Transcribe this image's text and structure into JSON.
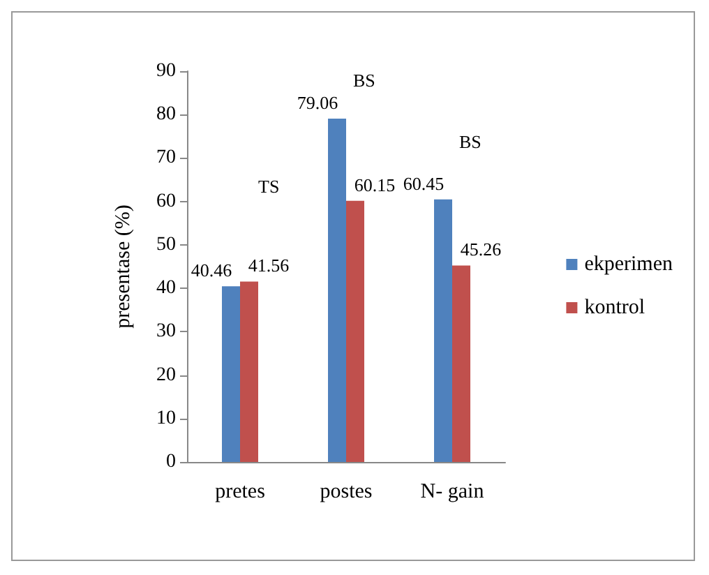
{
  "chart_data": {
    "type": "bar",
    "ylabel": "presentase (%)",
    "categories": [
      "pretes",
      "postes",
      "N- gain"
    ],
    "series": [
      {
        "name": "ekperimen",
        "color": "#4f81bd",
        "values": [
          40.46,
          79.06,
          60.45
        ]
      },
      {
        "name": "kontrol",
        "color": "#c0504d",
        "values": [
          41.56,
          60.15,
          45.26
        ]
      }
    ],
    "ylim": [
      0,
      90
    ],
    "yticks": [
      0,
      10,
      20,
      30,
      40,
      50,
      60,
      70,
      80,
      90
    ],
    "grid": false,
    "legend": "right",
    "data_labels": true,
    "annotations": [
      "TS",
      "BS",
      "BS"
    ]
  }
}
